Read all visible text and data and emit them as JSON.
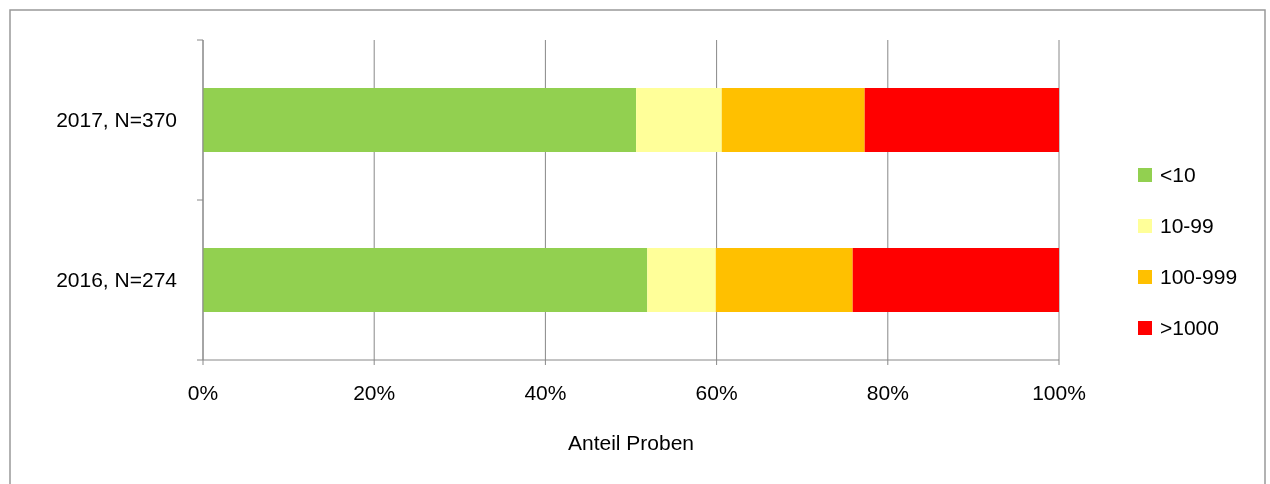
{
  "chart_data": {
    "type": "bar",
    "orientation": "horizontal",
    "stacked": true,
    "xlabel": "Anteil Proben",
    "categories": [
      "2017, N=370",
      "2016, N=274"
    ],
    "series": [
      {
        "name": "<10",
        "color": "#92d050",
        "values": [
          50.6,
          51.9
        ]
      },
      {
        "name": "10-99",
        "color": "#ffff99",
        "values": [
          10.0,
          8.0
        ]
      },
      {
        "name": "100-999",
        "color": "#ffc000",
        "values": [
          16.7,
          16.0
        ]
      },
      {
        "name": ">1000",
        "color": "#ff0000",
        "values": [
          22.7,
          24.1
        ]
      }
    ],
    "xlim": [
      0,
      100
    ],
    "xticks": [
      {
        "value": 0,
        "label": "0%"
      },
      {
        "value": 20,
        "label": "20%"
      },
      {
        "value": 40,
        "label": "40%"
      },
      {
        "value": 60,
        "label": "60%"
      },
      {
        "value": 80,
        "label": "80%"
      },
      {
        "value": 100,
        "label": "100%"
      }
    ],
    "grid": "x",
    "legend": "right"
  }
}
